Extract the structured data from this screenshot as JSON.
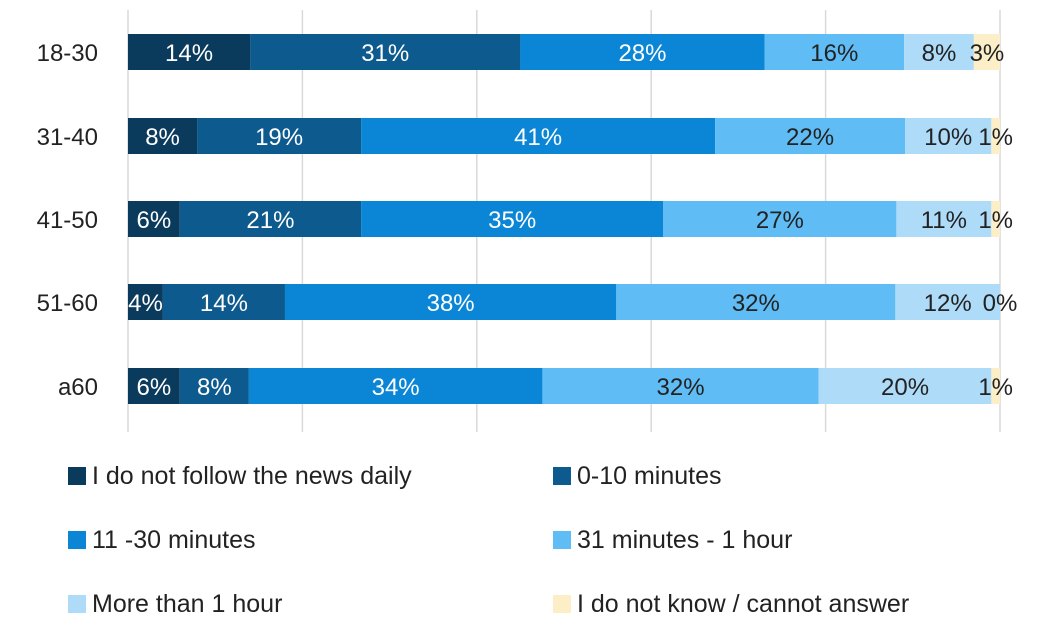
{
  "chart_data": {
    "type": "bar",
    "orientation": "horizontal",
    "stacked": true,
    "normalized": true,
    "title": "",
    "xlabel": "",
    "ylabel": "",
    "xlim": [
      0,
      1
    ],
    "grid": true,
    "legend_position": "bottom",
    "categories": [
      "18-30",
      "31-40",
      "41-50",
      "51-60",
      "a60"
    ],
    "series": [
      {
        "name": "I do not follow the news daily",
        "color": "#0a3a5c",
        "values": [
          14,
          8,
          6,
          4,
          6
        ],
        "labels": [
          "14%",
          "8%",
          "6%",
          "4%",
          "6%"
        ]
      },
      {
        "name": "0-10 minutes",
        "color": "#0d5a8e",
        "values": [
          31,
          19,
          21,
          14,
          8
        ],
        "labels": [
          "31%",
          "19%",
          "21%",
          "14%",
          "8%"
        ]
      },
      {
        "name": "11 -30 minutes",
        "color": "#0b86d6",
        "values": [
          28,
          41,
          35,
          38,
          34
        ],
        "labels": [
          "28%",
          "41%",
          "35%",
          "38%",
          "34%"
        ]
      },
      {
        "name": "31 minutes - 1 hour",
        "color": "#5fbcf5",
        "values": [
          16,
          22,
          27,
          32,
          32
        ],
        "labels": [
          "16%",
          "22%",
          "27%",
          "32%",
          "32%"
        ]
      },
      {
        "name": "More than 1 hour",
        "color": "#aedbf8",
        "values": [
          8,
          10,
          11,
          12,
          20
        ],
        "labels": [
          "8%",
          "10%",
          "11%",
          "12%",
          "20%"
        ]
      },
      {
        "name": "I do not know / cannot answer",
        "color": "#fcefc8",
        "values": [
          3,
          1,
          1,
          0,
          1
        ],
        "labels": [
          "3%",
          "1%",
          "1%",
          "0%",
          "1%"
        ]
      }
    ]
  }
}
